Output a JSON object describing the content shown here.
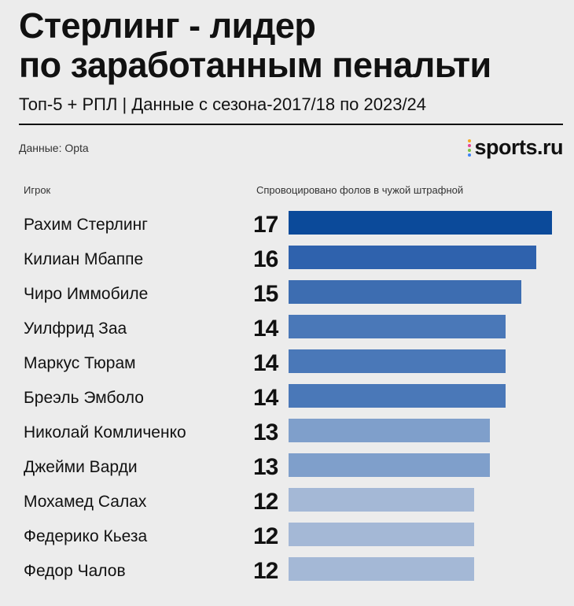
{
  "header": {
    "title_line1": "Стерлинг - лидер",
    "title_line2": "по заработанным пенальти",
    "subtitle": "Топ-5 + РПЛ | Данные с сезона-2017/18 по 2023/24",
    "source": "Данные: Opta"
  },
  "logo": {
    "text": "sports.ru",
    "dot_colors": [
      "#f5a623",
      "#e84393",
      "#7bc043",
      "#3b82f6"
    ]
  },
  "columns": {
    "player": "Игрок",
    "value": "Спровоцировано фолов в чужой штрафной"
  },
  "colors": {
    "v17": "#0b4a9a",
    "v16": "#2f62ad",
    "v15": "#3d6db1",
    "v14": "#4a78b8",
    "v13": "#7f9fcb",
    "v12": "#a4b8d6"
  },
  "chart_data": {
    "type": "bar",
    "orientation": "horizontal",
    "categories": [
      "Рахим Стерлинг",
      "Килиан Мбаппе",
      "Чиро Иммобиле",
      "Уилфрид Заа",
      "Маркус Тюрам",
      "Бреэль Эмболо",
      "Николай Комличенко",
      "Джейми Варди",
      "Мохамед Салах",
      "Федерико Кьеза",
      "Федор Чалов"
    ],
    "values": [
      17,
      16,
      15,
      14,
      14,
      14,
      13,
      13,
      12,
      12,
      12
    ],
    "title": "Стерлинг - лидер по заработанным пенальти",
    "xlabel": "Спровоцировано фолов в чужой штрафной",
    "ylabel": "Игрок",
    "xlim": [
      0,
      17
    ]
  }
}
